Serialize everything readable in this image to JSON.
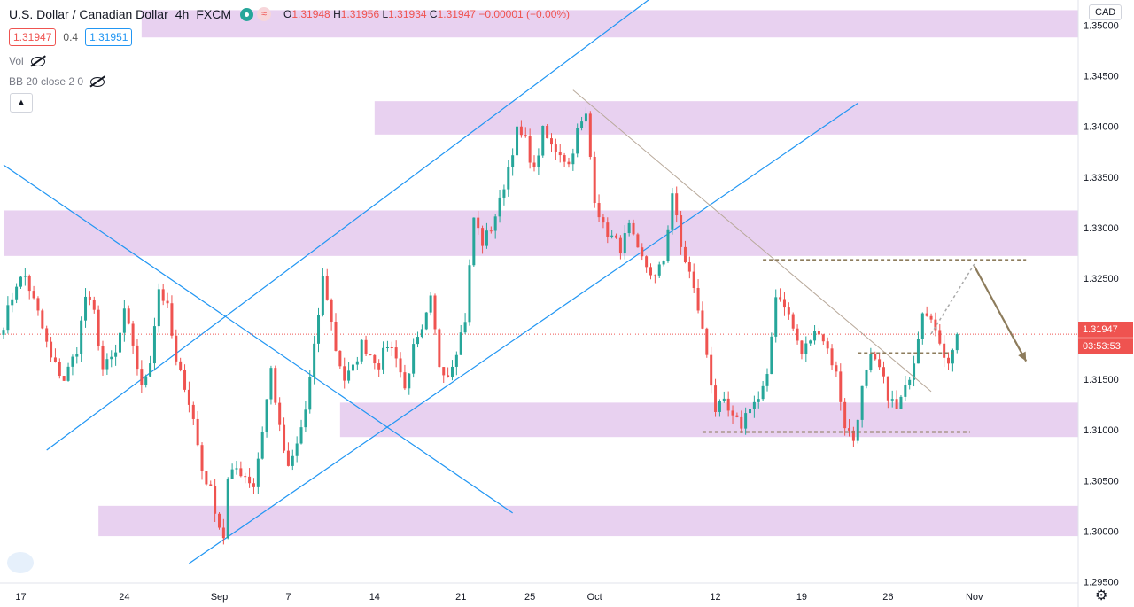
{
  "header": {
    "symbol": "U.S. Dollar / Canadian Dollar",
    "interval": "4h",
    "source": "FXCM",
    "ohlc": {
      "o_label": "O",
      "o": "1.31948",
      "h_label": "H",
      "h": "1.31956",
      "l_label": "L",
      "l": "1.31934",
      "c_label": "C",
      "c": "1.31947",
      "change": "−0.00001 (−0.00%)"
    }
  },
  "quotes": {
    "sell": "1.31947",
    "spread": "0.4",
    "buy": "1.31951"
  },
  "indicators": {
    "vol_label": "Vol",
    "bb_label": "BB 20 close 2 0",
    "collapse_icon": "chevron-up-icon"
  },
  "currency_badge": "CAD",
  "colors": {
    "up": "#26a69a",
    "down": "#ef5350",
    "zone": "#e4c9ed",
    "trendline": "#2196f3",
    "annotation": "#8d7c5c",
    "price_line": "#ef5350"
  },
  "chart_data": {
    "type": "candlestick",
    "symbol": "USDCAD",
    "timeframe": "4h",
    "ylim": [
      1.2925,
      1.3525
    ],
    "y_ticks": [
      "1.35000",
      "1.34500",
      "1.34000",
      "1.33500",
      "1.33000",
      "1.32500",
      "1.32000",
      "1.31500",
      "1.31000",
      "1.30500",
      "1.30000",
      "1.29500"
    ],
    "x_ticks": [
      {
        "label": "17",
        "bar": 4
      },
      {
        "label": "24",
        "bar": 28
      },
      {
        "label": "Sep",
        "bar": 50
      },
      {
        "label": "7",
        "bar": 66
      },
      {
        "label": "14",
        "bar": 86
      },
      {
        "label": "21",
        "bar": 106
      },
      {
        "label": "25",
        "bar": 122
      },
      {
        "label": "Oct",
        "bar": 137
      },
      {
        "label": "12",
        "bar": 165
      },
      {
        "label": "19",
        "bar": 185
      },
      {
        "label": "26",
        "bar": 205
      },
      {
        "label": "Nov",
        "bar": 225
      }
    ],
    "last_price": "1.31947",
    "countdown": "03:53:53",
    "price_label_color": "#ef5350",
    "zones": [
      {
        "from_bar": 32,
        "to_bar": 260,
        "low": 1.3488,
        "high": 1.3515
      },
      {
        "from_bar": 86,
        "to_bar": 260,
        "low": 1.3392,
        "high": 1.3425
      },
      {
        "from_bar": 0,
        "to_bar": 260,
        "low": 1.3272,
        "high": 1.3317
      },
      {
        "from_bar": 78,
        "to_bar": 260,
        "low": 1.3093,
        "high": 1.3127
      },
      {
        "from_bar": 22,
        "to_bar": 260,
        "low": 1.2995,
        "high": 1.3025
      }
    ],
    "trendlines": [
      {
        "x1": 10,
        "y1": 1.308,
        "x2": 162,
        "y2": 1.3565
      },
      {
        "x1": 43,
        "y1": 1.2968,
        "x2": 198,
        "y2": 1.3423
      },
      {
        "x1": 0,
        "y1": 1.3362,
        "x2": 118,
        "y2": 1.3018
      }
    ],
    "annotations": [
      {
        "kind": "line",
        "x1": 132,
        "y1": 1.3436,
        "x2": 215,
        "y2": 1.3138,
        "color": "#b8a99a"
      },
      {
        "kind": "dashed",
        "x1": 176,
        "y1": 1.3268,
        "x2": 237,
        "y2": 1.3268
      },
      {
        "kind": "dashed",
        "x1": 162,
        "y1": 1.3098,
        "x2": 224,
        "y2": 1.3098
      },
      {
        "kind": "dashed",
        "x1": 198,
        "y1": 1.3176,
        "x2": 220,
        "y2": 1.3176
      },
      {
        "kind": "dotted",
        "x1": 215,
        "y1": 1.3195,
        "x2": 225,
        "y2": 1.3264
      },
      {
        "kind": "arrow",
        "x1": 225,
        "y1": 1.3262,
        "x2": 237,
        "y2": 1.3168
      }
    ],
    "close_path": [
      [
        0,
        1.3205
      ],
      [
        3,
        1.3245
      ],
      [
        5,
        1.3252
      ],
      [
        8,
        1.3215
      ],
      [
        11,
        1.317
      ],
      [
        14,
        1.315
      ],
      [
        17,
        1.318
      ],
      [
        19,
        1.3232
      ],
      [
        21,
        1.3215
      ],
      [
        23,
        1.316
      ],
      [
        26,
        1.3175
      ],
      [
        28,
        1.3215
      ],
      [
        30,
        1.3185
      ],
      [
        32,
        1.314
      ],
      [
        34,
        1.317
      ],
      [
        36,
        1.324
      ],
      [
        38,
        1.322
      ],
      [
        40,
        1.3165
      ],
      [
        42,
        1.3145
      ],
      [
        44,
        1.311
      ],
      [
        46,
        1.306
      ],
      [
        48,
        1.304
      ],
      [
        50,
        1.3005
      ],
      [
        51,
        1.2995
      ],
      [
        52,
        1.305
      ],
      [
        54,
        1.3062
      ],
      [
        56,
        1.3055
      ],
      [
        58,
        1.3045
      ],
      [
        60,
        1.31
      ],
      [
        62,
        1.316
      ],
      [
        64,
        1.31
      ],
      [
        66,
        1.306
      ],
      [
        68,
        1.3085
      ],
      [
        70,
        1.312
      ],
      [
        72,
        1.318
      ],
      [
        74,
        1.325
      ],
      [
        75,
        1.3232
      ],
      [
        77,
        1.318
      ],
      [
        79,
        1.315
      ],
      [
        81,
        1.316
      ],
      [
        83,
        1.3185
      ],
      [
        85,
        1.3175
      ],
      [
        87,
        1.3165
      ],
      [
        89,
        1.3185
      ],
      [
        91,
        1.3175
      ],
      [
        93,
        1.314
      ],
      [
        95,
        1.318
      ],
      [
        97,
        1.3195
      ],
      [
        99,
        1.3228
      ],
      [
        101,
        1.3165
      ],
      [
        103,
        1.3155
      ],
      [
        105,
        1.318
      ],
      [
        107,
        1.321
      ],
      [
        109,
        1.331
      ],
      [
        111,
        1.3285
      ],
      [
        113,
        1.33
      ],
      [
        115,
        1.3325
      ],
      [
        117,
        1.336
      ],
      [
        119,
        1.3395
      ],
      [
        121,
        1.3385
      ],
      [
        123,
        1.3355
      ],
      [
        125,
        1.3395
      ],
      [
        127,
        1.338
      ],
      [
        129,
        1.3375
      ],
      [
        131,
        1.3362
      ],
      [
        133,
        1.3395
      ],
      [
        135,
        1.341
      ],
      [
        137,
        1.333
      ],
      [
        139,
        1.33
      ],
      [
        141,
        1.329
      ],
      [
        143,
        1.328
      ],
      [
        145,
        1.33
      ],
      [
        147,
        1.3275
      ],
      [
        149,
        1.3262
      ],
      [
        151,
        1.325
      ],
      [
        153,
        1.3268
      ],
      [
        155,
        1.3335
      ],
      [
        157,
        1.328
      ],
      [
        159,
        1.3255
      ],
      [
        161,
        1.322
      ],
      [
        163,
        1.3175
      ],
      [
        165,
        1.312
      ],
      [
        167,
        1.3125
      ],
      [
        169,
        1.311
      ],
      [
        171,
        1.3105
      ],
      [
        173,
        1.3125
      ],
      [
        175,
        1.313
      ],
      [
        177,
        1.315
      ],
      [
        179,
        1.3235
      ],
      [
        181,
        1.3225
      ],
      [
        183,
        1.32
      ],
      [
        185,
        1.3175
      ],
      [
        187,
        1.319
      ],
      [
        189,
        1.32
      ],
      [
        191,
        1.318
      ],
      [
        193,
        1.3155
      ],
      [
        195,
        1.3105
      ],
      [
        197,
        1.309
      ],
      [
        199,
        1.314
      ],
      [
        201,
        1.317
      ],
      [
        203,
        1.316
      ],
      [
        205,
        1.3135
      ],
      [
        207,
        1.312
      ],
      [
        209,
        1.314
      ],
      [
        211,
        1.317
      ],
      [
        213,
        1.322
      ],
      [
        215,
        1.3215
      ],
      [
        217,
        1.318
      ],
      [
        219,
        1.317
      ],
      [
        221,
        1.3195
      ]
    ]
  }
}
